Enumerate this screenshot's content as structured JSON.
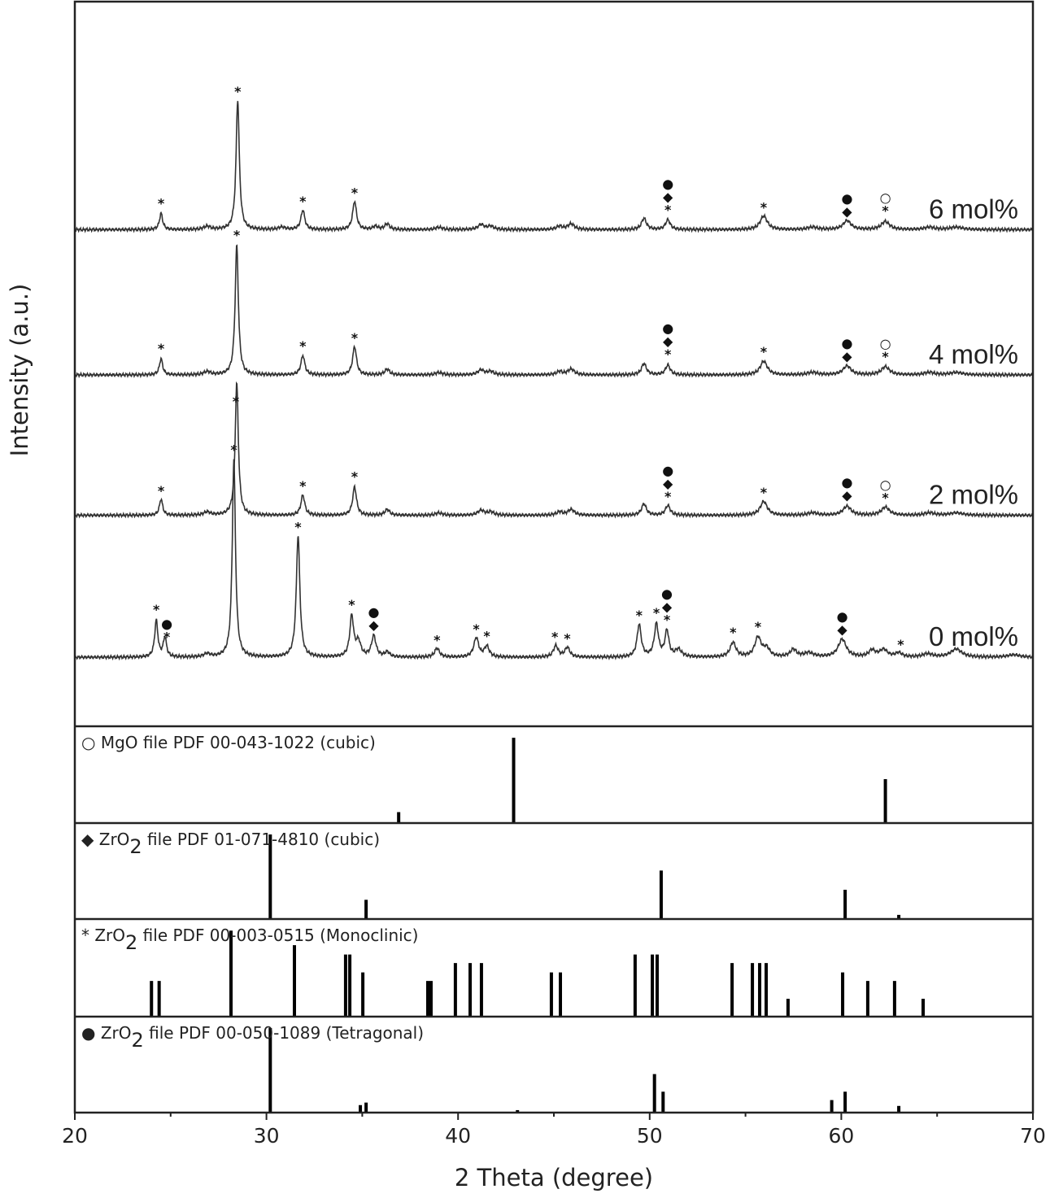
{
  "chart_data": {
    "type": "line",
    "xlabel": "2 Theta (degree)",
    "ylabel": "Intensity (a.u.)",
    "xlim": [
      20,
      70
    ],
    "xticks": [
      "20",
      "30",
      "40",
      "50",
      "60",
      "70"
    ],
    "grid": false,
    "main_ylim": [
      0,
      893
    ],
    "series": [
      {
        "name": "0 mol%",
        "offset": 85,
        "peaks": [
          [
            24.25,
            45,
            0.1
          ],
          [
            24.7,
            24,
            0.1
          ],
          [
            26.9,
            4,
            0.2
          ],
          [
            28.3,
            243,
            0.1
          ],
          [
            31.65,
            150,
            0.11
          ],
          [
            34.45,
            50,
            0.12
          ],
          [
            34.8,
            18,
            0.15
          ],
          [
            35.6,
            26,
            0.14
          ],
          [
            36.3,
            6,
            0.15
          ],
          [
            38.9,
            11,
            0.15
          ],
          [
            40.95,
            24,
            0.15
          ],
          [
            41.5,
            13,
            0.15
          ],
          [
            45.1,
            14,
            0.15
          ],
          [
            45.7,
            12,
            0.15
          ],
          [
            49.45,
            40,
            0.13
          ],
          [
            50.35,
            40,
            0.13
          ],
          [
            50.9,
            32,
            0.12
          ],
          [
            51.5,
            9,
            0.2
          ],
          [
            54.35,
            18,
            0.18
          ],
          [
            55.65,
            24,
            0.2
          ],
          [
            56.1,
            10,
            0.2
          ],
          [
            57.5,
            9,
            0.2
          ],
          [
            58.3,
            5,
            0.3
          ],
          [
            60.05,
            22,
            0.25
          ],
          [
            61.6,
            8,
            0.2
          ],
          [
            62.2,
            9,
            0.25
          ],
          [
            63.0,
            5,
            0.2
          ],
          [
            64.5,
            4,
            0.3
          ],
          [
            66.0,
            10,
            0.35
          ],
          [
            69.0,
            3,
            0.4
          ]
        ],
        "markers": [
          {
            "x": 24.25,
            "symbols": [
              "*"
            ]
          },
          {
            "x": 24.8,
            "symbols": [
              "●",
              "*"
            ]
          },
          {
            "x": 28.3,
            "symbols": [
              "*"
            ]
          },
          {
            "x": 31.65,
            "symbols": [
              "*"
            ]
          },
          {
            "x": 34.45,
            "symbols": [
              "*"
            ]
          },
          {
            "x": 35.6,
            "symbols": [
              "●",
              "◆"
            ]
          },
          {
            "x": 38.9,
            "symbols": [
              "*"
            ]
          },
          {
            "x": 40.95,
            "symbols": [
              "*"
            ]
          },
          {
            "x": 41.5,
            "symbols": [
              "*"
            ]
          },
          {
            "x": 45.05,
            "symbols": [
              "*"
            ]
          },
          {
            "x": 45.7,
            "symbols": [
              "*"
            ]
          },
          {
            "x": 49.45,
            "symbols": [
              "*"
            ]
          },
          {
            "x": 50.35,
            "symbols": [
              "*"
            ]
          },
          {
            "x": 50.9,
            "symbols": [
              "●",
              "◆",
              "*"
            ]
          },
          {
            "x": 54.35,
            "symbols": [
              "*"
            ]
          },
          {
            "x": 55.65,
            "symbols": [
              "*"
            ]
          },
          {
            "x": 60.05,
            "symbols": [
              "●",
              "◆"
            ]
          },
          {
            "x": 63.1,
            "symbols": [
              "*"
            ]
          }
        ]
      },
      {
        "name": "2 mol%",
        "offset": 260,
        "peaks": [
          [
            24.5,
            20,
            0.1
          ],
          [
            26.9,
            4,
            0.2
          ],
          [
            28.45,
            163,
            0.1
          ],
          [
            31.9,
            25,
            0.12
          ],
          [
            34.6,
            35,
            0.12
          ],
          [
            36.3,
            7,
            0.15
          ],
          [
            39.0,
            3,
            0.2
          ],
          [
            41.2,
            6,
            0.2
          ],
          [
            41.7,
            4,
            0.2
          ],
          [
            45.3,
            4,
            0.2
          ],
          [
            45.9,
            7,
            0.2
          ],
          [
            49.7,
            14,
            0.15
          ],
          [
            50.95,
            12,
            0.15
          ],
          [
            55.95,
            17,
            0.22
          ],
          [
            58.5,
            3,
            0.3
          ],
          [
            60.3,
            11,
            0.25
          ],
          [
            62.3,
            10,
            0.25
          ],
          [
            64.6,
            3,
            0.3
          ],
          [
            66.0,
            3,
            0.4
          ]
        ],
        "markers": [
          {
            "x": 24.5,
            "symbols": [
              "*"
            ]
          },
          {
            "x": 28.4,
            "symbols": [
              "*"
            ]
          },
          {
            "x": 31.9,
            "symbols": [
              "*"
            ]
          },
          {
            "x": 34.6,
            "symbols": [
              "*"
            ]
          },
          {
            "x": 50.95,
            "symbols": [
              "●",
              "◆",
              "*"
            ]
          },
          {
            "x": 55.95,
            "symbols": [
              "*"
            ]
          },
          {
            "x": 60.3,
            "symbols": [
              "●",
              "◆"
            ]
          },
          {
            "x": 62.3,
            "symbols": [
              "○",
              "*"
            ]
          }
        ]
      },
      {
        "name": "4 mol%",
        "offset": 433,
        "peaks": [
          [
            24.5,
            20,
            0.1
          ],
          [
            26.9,
            4,
            0.2
          ],
          [
            28.45,
            160,
            0.1
          ],
          [
            31.9,
            24,
            0.12
          ],
          [
            34.6,
            35,
            0.12
          ],
          [
            36.3,
            7,
            0.15
          ],
          [
            39.0,
            3,
            0.2
          ],
          [
            41.2,
            6,
            0.2
          ],
          [
            41.7,
            4,
            0.2
          ],
          [
            45.3,
            4,
            0.2
          ],
          [
            45.9,
            7,
            0.2
          ],
          [
            49.7,
            14,
            0.15
          ],
          [
            50.95,
            12,
            0.15
          ],
          [
            55.95,
            17,
            0.22
          ],
          [
            58.5,
            3,
            0.3
          ],
          [
            60.3,
            11,
            0.25
          ],
          [
            62.3,
            10,
            0.25
          ],
          [
            64.6,
            3,
            0.3
          ],
          [
            66.0,
            3,
            0.4
          ]
        ],
        "markers": [
          {
            "x": 24.5,
            "symbols": [
              "*"
            ]
          },
          {
            "x": 28.45,
            "symbols": [
              "*"
            ]
          },
          {
            "x": 31.9,
            "symbols": [
              "*"
            ]
          },
          {
            "x": 34.6,
            "symbols": [
              "*"
            ]
          },
          {
            "x": 50.95,
            "symbols": [
              "●",
              "◆",
              "*"
            ]
          },
          {
            "x": 55.95,
            "symbols": [
              "*"
            ]
          },
          {
            "x": 60.3,
            "symbols": [
              "●",
              "◆"
            ]
          },
          {
            "x": 62.3,
            "symbols": [
              "○",
              "*"
            ]
          }
        ]
      },
      {
        "name": "6 mol%",
        "offset": 612,
        "peaks": [
          [
            24.5,
            20,
            0.1
          ],
          [
            26.9,
            4,
            0.2
          ],
          [
            28.5,
            160,
            0.1
          ],
          [
            30.8,
            3,
            0.2
          ],
          [
            31.9,
            24,
            0.12
          ],
          [
            34.6,
            35,
            0.12
          ],
          [
            35.7,
            4,
            0.15
          ],
          [
            36.3,
            7,
            0.15
          ],
          [
            39.0,
            3,
            0.2
          ],
          [
            41.2,
            6,
            0.2
          ],
          [
            41.7,
            4,
            0.2
          ],
          [
            45.3,
            4,
            0.2
          ],
          [
            45.9,
            7,
            0.2
          ],
          [
            49.7,
            14,
            0.15
          ],
          [
            50.95,
            12,
            0.15
          ],
          [
            55.95,
            17,
            0.22
          ],
          [
            58.5,
            3,
            0.3
          ],
          [
            60.3,
            11,
            0.25
          ],
          [
            62.3,
            10,
            0.25
          ],
          [
            64.6,
            3,
            0.3
          ],
          [
            66.0,
            3,
            0.4
          ]
        ],
        "markers": [
          {
            "x": 24.5,
            "symbols": [
              "*"
            ]
          },
          {
            "x": 28.5,
            "symbols": [
              "*"
            ]
          },
          {
            "x": 31.9,
            "symbols": [
              "*"
            ]
          },
          {
            "x": 34.6,
            "symbols": [
              "*"
            ]
          },
          {
            "x": 50.95,
            "symbols": [
              "●",
              "◆",
              "*"
            ]
          },
          {
            "x": 55.95,
            "symbols": [
              "*"
            ]
          },
          {
            "x": 60.3,
            "symbols": [
              "●",
              "◆"
            ]
          },
          {
            "x": 62.3,
            "symbols": [
              "○",
              "*"
            ]
          }
        ]
      }
    ],
    "references": [
      {
        "symbol": "○",
        "formula": "MgO",
        "sub": "",
        "text": " file PDF 00-043-1022 (cubic)",
        "sticks": [
          [
            36.9,
            12
          ],
          [
            42.9,
            100
          ],
          [
            62.3,
            51
          ]
        ]
      },
      {
        "symbol": "◆",
        "formula": "ZrO",
        "sub": "2",
        "text": " file PDF 01-071-4810 (cubic)",
        "sticks": [
          [
            30.2,
            100
          ],
          [
            35.2,
            22
          ],
          [
            50.6,
            57
          ],
          [
            60.2,
            34
          ],
          [
            63.0,
            4
          ]
        ]
      },
      {
        "symbol": "*",
        "formula": "ZrO",
        "sub": "2",
        "text": " file PDF 00-003-0515 (Monoclinic)",
        "sticks": [
          [
            24.0,
            41
          ],
          [
            24.4,
            41
          ],
          [
            28.15,
            100
          ],
          [
            31.46,
            83
          ],
          [
            34.13,
            72
          ],
          [
            34.35,
            72
          ],
          [
            35.03,
            51
          ],
          [
            38.42,
            41
          ],
          [
            38.59,
            41
          ],
          [
            39.86,
            62
          ],
          [
            40.63,
            62
          ],
          [
            41.22,
            62
          ],
          [
            44.87,
            51
          ],
          [
            45.34,
            51
          ],
          [
            49.24,
            72
          ],
          [
            50.14,
            72
          ],
          [
            50.39,
            72
          ],
          [
            54.3,
            62
          ],
          [
            55.36,
            62
          ],
          [
            55.74,
            62
          ],
          [
            56.08,
            62
          ],
          [
            57.22,
            20
          ],
          [
            60.07,
            51
          ],
          [
            61.38,
            41
          ],
          [
            62.78,
            41
          ],
          [
            64.27,
            20
          ]
        ]
      },
      {
        "symbol": "●",
        "formula": "ZrO",
        "sub": "2",
        "text": " file PDF 00-050-1089 (Tetragonal)",
        "sticks": [
          [
            30.2,
            100
          ],
          [
            34.9,
            8
          ],
          [
            35.2,
            11
          ],
          [
            43.1,
            2
          ],
          [
            50.25,
            45
          ],
          [
            50.7,
            24
          ],
          [
            59.5,
            14
          ],
          [
            60.2,
            24
          ],
          [
            63.0,
            7
          ]
        ]
      }
    ]
  }
}
